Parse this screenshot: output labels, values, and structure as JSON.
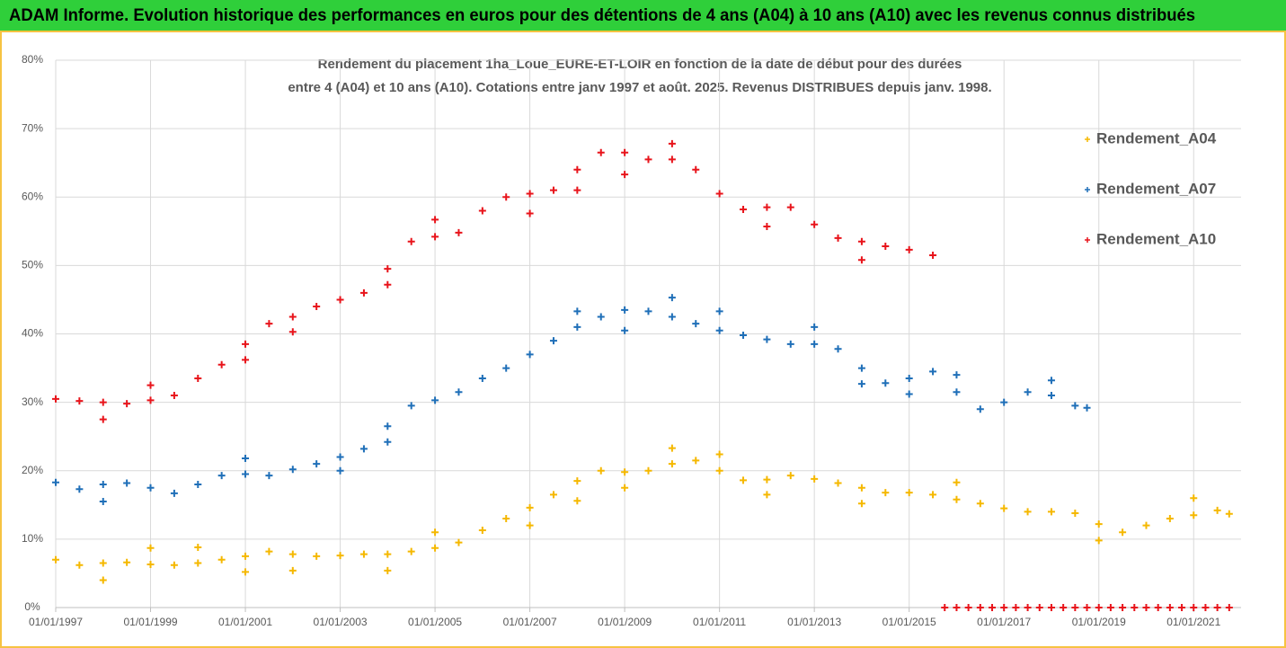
{
  "header_title": "ADAM Informe. Evolution historique des performances en euros pour des détentions de 4 ans (A04) à 10 ans (A10) avec les revenus connus distribués",
  "chart_data": {
    "type": "scatter",
    "title": [
      "Rendement du placement 1ha_Loue_EURE-ET-LOIR en fonction de la date de début pour des durées",
      "entre 4 (A04) et 10 ans (A10). Cotations entre janv 1997 et août. 2025. Revenus DISTRIBUES depuis janv. 1998."
    ],
    "xlim": [
      "01/01/1997",
      "01/01/2022"
    ],
    "xticks": [
      "01/01/1997",
      "01/01/1999",
      "01/01/2001",
      "01/01/2003",
      "01/01/2005",
      "01/01/2007",
      "01/01/2009",
      "01/01/2011",
      "01/01/2013",
      "01/01/2015",
      "01/01/2017",
      "01/01/2019",
      "01/01/2021"
    ],
    "ylim": [
      0,
      80
    ],
    "yticks": [
      {
        "value": 0,
        "label": "0%"
      },
      {
        "value": 10,
        "label": "10%"
      },
      {
        "value": 20,
        "label": "20%"
      },
      {
        "value": 30,
        "label": "30%"
      },
      {
        "value": 40,
        "label": "40%"
      },
      {
        "value": 50,
        "label": "50%"
      },
      {
        "value": 60,
        "label": "60%"
      },
      {
        "value": 70,
        "label": "70%"
      },
      {
        "value": 80,
        "label": "80%"
      }
    ],
    "grid": true,
    "legend": "upper right",
    "series": [
      {
        "name": "Rendement_A04",
        "color": "#f5b800",
        "x": [
          "01/01/1997",
          "01/07/1997",
          "01/01/1998",
          "01/01/1998",
          "01/07/1998",
          "01/01/1999",
          "01/01/1999",
          "01/07/1999",
          "01/01/2000",
          "01/01/2000",
          "01/07/2000",
          "01/01/2001",
          "01/01/2001",
          "01/07/2001",
          "01/01/2002",
          "01/01/2002",
          "01/07/2002",
          "01/01/2003",
          "01/07/2003",
          "01/01/2004",
          "01/01/2004",
          "01/07/2004",
          "01/01/2005",
          "01/01/2005",
          "01/07/2005",
          "01/01/2006",
          "01/07/2006",
          "01/01/2007",
          "01/01/2007",
          "01/07/2007",
          "01/01/2008",
          "01/01/2008",
          "01/07/2008",
          "01/01/2009",
          "01/01/2009",
          "01/07/2009",
          "01/01/2010",
          "01/01/2010",
          "01/07/2010",
          "01/01/2011",
          "01/01/2011",
          "01/07/2011",
          "01/01/2012",
          "01/01/2012",
          "01/07/2012",
          "01/01/2013",
          "01/07/2013",
          "01/01/2014",
          "01/01/2014",
          "01/07/2014",
          "01/01/2015",
          "01/07/2015",
          "01/01/2016",
          "01/01/2016",
          "01/07/2016",
          "01/01/2017",
          "01/07/2017",
          "01/01/2018",
          "01/07/2018",
          "01/01/2019",
          "01/01/2019",
          "01/07/2019",
          "01/01/2020",
          "01/07/2020",
          "01/01/2021",
          "01/01/2021",
          "01/07/2021",
          "01/10/2021"
        ],
        "values": [
          7,
          6.2,
          6.5,
          4,
          6.6,
          6.3,
          8.7,
          6.2,
          6.5,
          8.8,
          7,
          7.5,
          5.2,
          8.2,
          7.8,
          5.4,
          7.5,
          7.6,
          7.8,
          7.8,
          5.4,
          8.2,
          8.7,
          11,
          9.5,
          11.3,
          13,
          14.6,
          12,
          16.5,
          18.5,
          15.6,
          20,
          19.8,
          17.5,
          20,
          21,
          23.3,
          21.5,
          20,
          22.4,
          18.6,
          18.7,
          16.5,
          19.3,
          18.8,
          18.2,
          17.5,
          15.2,
          16.8,
          16.8,
          16.5,
          15.8,
          18.3,
          15.2,
          14.5,
          14,
          14,
          13.8,
          12.2,
          9.8,
          11,
          12,
          13,
          13.5,
          16,
          14.2,
          13.7
        ]
      },
      {
        "name": "Rendement_A07",
        "color": "#1f6fb8",
        "x": [
          "01/01/1997",
          "01/07/1997",
          "01/01/1998",
          "01/01/1998",
          "01/07/1998",
          "01/01/1999",
          "01/07/1999",
          "01/01/2000",
          "01/07/2000",
          "01/01/2001",
          "01/01/2001",
          "01/07/2001",
          "01/01/2002",
          "01/07/2002",
          "01/01/2003",
          "01/01/2003",
          "01/07/2003",
          "01/01/2004",
          "01/01/2004",
          "01/07/2004",
          "01/01/2005",
          "01/07/2005",
          "01/01/2006",
          "01/07/2006",
          "01/01/2007",
          "01/07/2007",
          "01/01/2008",
          "01/01/2008",
          "01/07/2008",
          "01/01/2009",
          "01/01/2009",
          "01/07/2009",
          "01/01/2010",
          "01/01/2010",
          "01/07/2010",
          "01/01/2011",
          "01/01/2011",
          "01/07/2011",
          "01/01/2012",
          "01/07/2012",
          "01/01/2013",
          "01/01/2013",
          "01/07/2013",
          "01/01/2014",
          "01/01/2014",
          "01/07/2014",
          "01/01/2015",
          "01/01/2015",
          "01/07/2015",
          "01/01/2016",
          "01/01/2016",
          "01/07/2016",
          "01/01/2017",
          "01/07/2017",
          "01/01/2018",
          "01/01/2018",
          "01/07/2018",
          "01/10/2018"
        ],
        "values": [
          18.3,
          17.3,
          18,
          15.5,
          18.2,
          17.5,
          16.7,
          18,
          19.3,
          19.5,
          21.8,
          19.3,
          20.2,
          21,
          22,
          20,
          23.2,
          26.5,
          24.2,
          29.5,
          30.3,
          31.5,
          33.5,
          35,
          37,
          39,
          41,
          43.3,
          42.5,
          43.5,
          40.5,
          43.3,
          42.5,
          45.3,
          41.5,
          40.5,
          43.3,
          39.8,
          39.2,
          38.5,
          38.5,
          41,
          37.8,
          35,
          32.7,
          32.8,
          33.5,
          31.2,
          34.5,
          31.5,
          34,
          29,
          30,
          31.5,
          31,
          33.2,
          29.5,
          29.2
        ]
      },
      {
        "name": "Rendement_A10",
        "color": "#e8141b",
        "x": [
          "01/01/1997",
          "01/07/1997",
          "01/01/1998",
          "01/01/1998",
          "01/07/1998",
          "01/01/1999",
          "01/01/1999",
          "01/07/1999",
          "01/01/2000",
          "01/07/2000",
          "01/01/2001",
          "01/01/2001",
          "01/07/2001",
          "01/01/2002",
          "01/01/2002",
          "01/07/2002",
          "01/01/2003",
          "01/07/2003",
          "01/01/2004",
          "01/01/2004",
          "01/07/2004",
          "01/01/2005",
          "01/01/2005",
          "01/07/2005",
          "01/01/2006",
          "01/07/2006",
          "01/01/2007",
          "01/01/2007",
          "01/07/2007",
          "01/01/2008",
          "01/01/2008",
          "01/07/2008",
          "01/01/2009",
          "01/01/2009",
          "01/07/2009",
          "01/01/2010",
          "01/01/2010",
          "01/07/2010",
          "01/01/2011",
          "01/07/2011",
          "01/01/2012",
          "01/01/2012",
          "01/07/2012",
          "01/01/2013",
          "01/07/2013",
          "01/01/2014",
          "01/01/2014",
          "01/07/2014",
          "01/01/2015",
          "01/07/2015",
          "01/10/2015",
          "01/01/2016",
          "01/04/2016",
          "01/07/2016",
          "01/10/2016",
          "01/01/2017",
          "01/04/2017",
          "01/07/2017",
          "01/10/2017",
          "01/01/2018",
          "01/04/2018",
          "01/07/2018",
          "01/10/2018",
          "01/01/2019",
          "01/04/2019",
          "01/07/2019",
          "01/10/2019",
          "01/01/2020",
          "01/04/2020",
          "01/07/2020",
          "01/10/2020",
          "01/01/2021",
          "01/04/2021",
          "01/07/2021",
          "01/10/2021"
        ],
        "values": [
          30.5,
          30.2,
          30,
          27.5,
          29.8,
          30.3,
          32.5,
          31,
          33.5,
          35.5,
          38.5,
          36.2,
          41.5,
          42.5,
          40.3,
          44,
          45,
          46,
          49.5,
          47.2,
          53.5,
          54.2,
          56.7,
          54.8,
          58,
          60,
          60.5,
          57.6,
          61,
          64,
          61,
          66.5,
          66.5,
          63.3,
          65.5,
          65.5,
          67.8,
          64,
          60.5,
          58.2,
          58.5,
          55.7,
          58.5,
          56,
          54,
          53.5,
          50.8,
          52.8,
          52.3,
          51.5,
          0,
          0,
          0,
          0,
          0,
          0,
          0,
          0,
          0,
          0,
          0,
          0,
          0,
          0,
          0,
          0,
          0,
          0,
          0,
          0,
          0,
          0,
          0,
          0,
          0
        ]
      }
    ]
  }
}
